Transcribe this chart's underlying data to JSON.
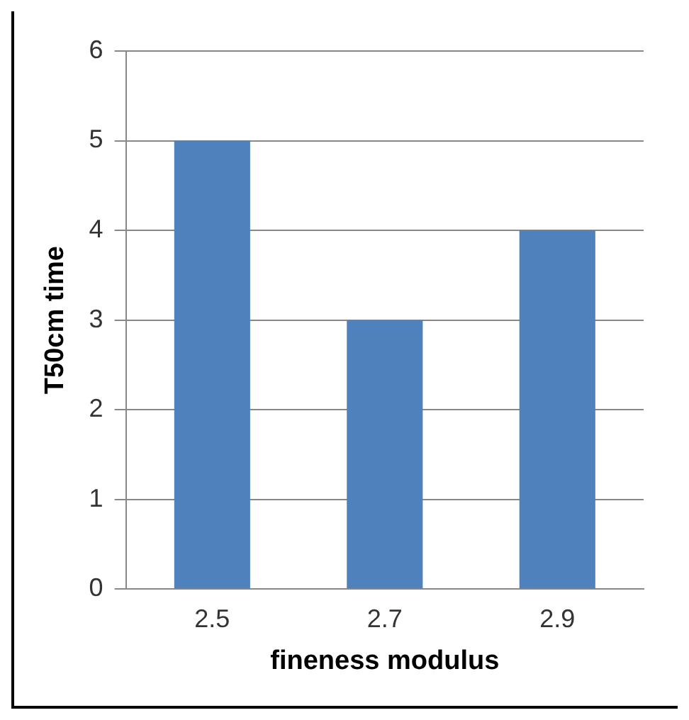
{
  "chart_data": {
    "type": "bar",
    "xlabel": "fineness modulus",
    "ylabel": "T50cm time",
    "categories": [
      "2.5",
      "2.7",
      "2.9"
    ],
    "series": [
      {
        "color": "#4f81bd",
        "values": [
          5,
          3,
          4
        ]
      }
    ],
    "ylim": [
      0,
      6
    ],
    "yticks": [
      0,
      1,
      2,
      3,
      4,
      5,
      6
    ],
    "grid": "y",
    "legend": false
  }
}
